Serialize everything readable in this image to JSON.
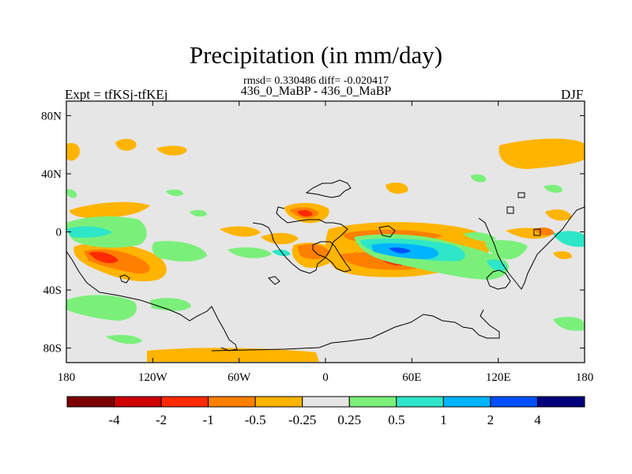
{
  "title": "Precipitation (in mm/day)",
  "stats": "rmsd= 0.330486 diff= -0.020417",
  "runs": "436_0_MaBP - 436_0_MaBP",
  "experiment": "Expt = tfKSj-tfKEj",
  "season": "DJF",
  "map": {
    "lat_ticks": [
      "80N",
      "40N",
      "0",
      "40S",
      "80S"
    ],
    "lon_ticks": [
      "180",
      "120W",
      "60W",
      "0",
      "60E",
      "120E",
      "180"
    ],
    "background_color": "#e6e6e6"
  },
  "colorbar": {
    "colors": [
      "#7d0000",
      "#cc0000",
      "#ff2a00",
      "#ff7f00",
      "#ffb400",
      "#e6e6e6",
      "#7af07a",
      "#2ee6c8",
      "#00b4ff",
      "#0050ff",
      "#00007d"
    ],
    "labels": [
      "-4",
      "-2",
      "-1",
      "-0.5",
      "-0.25",
      "0.25",
      "0.5",
      "1",
      "2",
      "4"
    ]
  }
}
